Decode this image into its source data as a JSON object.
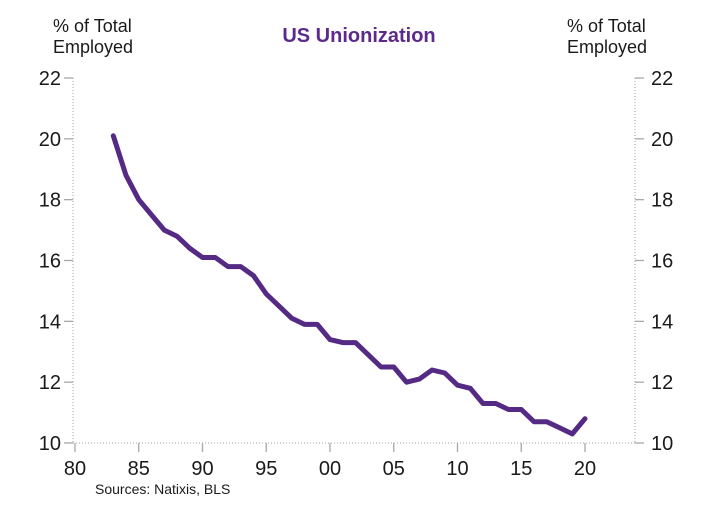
{
  "chart": {
    "title": "US Unionization",
    "left_axis_unit": "% of Total\nEmployed",
    "right_axis_unit": "% of Total\nEmployed",
    "sources": "Sources: Natixis, BLS"
  },
  "chart_data": {
    "type": "line",
    "title": "US Unionization",
    "ylabel": "% of Total Employed",
    "x": [
      1983,
      1984,
      1985,
      1986,
      1987,
      1988,
      1989,
      1990,
      1991,
      1992,
      1993,
      1994,
      1995,
      1996,
      1997,
      1998,
      1999,
      2000,
      2001,
      2002,
      2003,
      2004,
      2005,
      2006,
      2007,
      2008,
      2009,
      2010,
      2011,
      2012,
      2013,
      2014,
      2015,
      2016,
      2017,
      2018,
      2019,
      2020
    ],
    "values": [
      20.1,
      18.8,
      18.0,
      17.5,
      17.0,
      16.8,
      16.4,
      16.1,
      16.1,
      15.8,
      15.8,
      15.5,
      14.9,
      14.5,
      14.1,
      13.9,
      13.9,
      13.4,
      13.3,
      13.3,
      12.9,
      12.5,
      12.5,
      12.0,
      12.1,
      12.4,
      12.3,
      11.9,
      11.8,
      11.3,
      11.3,
      11.1,
      11.1,
      10.7,
      10.7,
      10.5,
      10.3,
      10.8
    ],
    "ylim": [
      10,
      22
    ],
    "xlim": [
      1980,
      2024
    ],
    "y_ticks": [
      22,
      20,
      18,
      16,
      14,
      12,
      10
    ],
    "x_tick_years": [
      1980,
      1985,
      1990,
      1995,
      2000,
      2005,
      2010,
      2015,
      2020
    ],
    "x_tick_labels": [
      "80",
      "85",
      "90",
      "95",
      "00",
      "05",
      "10",
      "15",
      "20"
    ],
    "grid": false,
    "legend": "none",
    "line_color": "#542a85",
    "title_color": "#5b2a8c",
    "axis_color": "#b5b5b5",
    "tick_color": "#a8a8a8",
    "text_color": "#1a1a1a"
  }
}
